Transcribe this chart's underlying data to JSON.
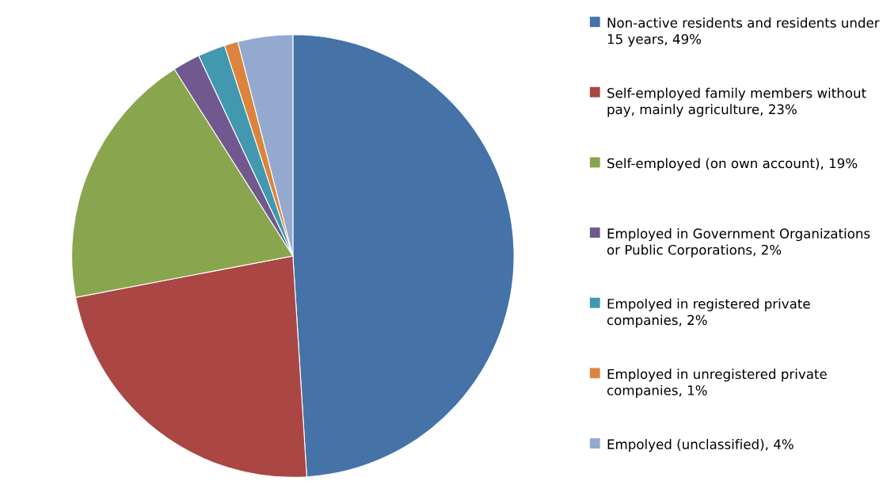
{
  "chart_data": {
    "type": "pie",
    "categories": [
      "Non-active residents and residents under 15 years, 49%",
      "Self-employed family members without pay, mainly agriculture, 23%",
      "Self-employed (on own account), 19%",
      "Employed in Government Organizations or Public Corporations, 2%",
      "Empolyed in registered private companies, 2%",
      "Employed in unregistered private companies, 1%",
      "Empolyed (unclassified), 4%"
    ],
    "values": [
      49,
      23,
      19,
      2,
      2,
      1,
      4
    ],
    "colors": [
      "#4572a7",
      "#aa4643",
      "#89a54e",
      "#71588f",
      "#4198af",
      "#db843d",
      "#93a9cf"
    ],
    "legend": "right"
  }
}
